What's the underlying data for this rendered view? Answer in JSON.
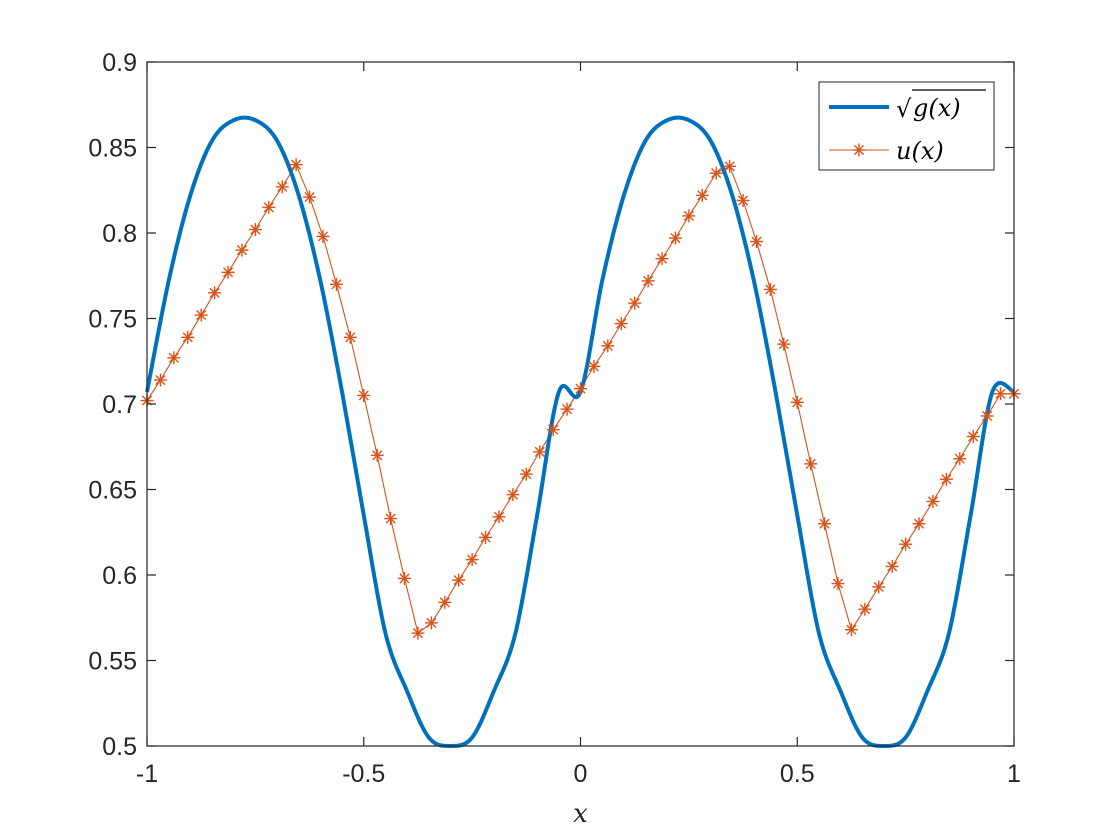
{
  "chart_data": {
    "type": "line",
    "xlabel": "x",
    "ylabel": "",
    "title": "",
    "xlim": [
      -1,
      1
    ],
    "ylim": [
      0.5,
      0.9
    ],
    "xticks": [
      -1,
      -0.5,
      0,
      0.5,
      1
    ],
    "xtick_labels": [
      "-1",
      "-0.5",
      "0",
      "0.5",
      "1"
    ],
    "yticks": [
      0.5,
      0.55,
      0.6,
      0.65,
      0.7,
      0.75,
      0.8,
      0.85,
      0.9
    ],
    "ytick_labels": [
      "0.5",
      "0.55",
      "0.6",
      "0.65",
      "0.7",
      "0.75",
      "0.8",
      "0.85",
      "0.9"
    ],
    "grid": false,
    "legend_position": "top-right",
    "series": [
      {
        "name": "√g(x)",
        "legend_label": {
          "radical": "√",
          "body": "g(x)"
        },
        "color": "#0072BD",
        "marker": "none",
        "x": [
          -1.0,
          -0.95,
          -0.9,
          -0.85,
          -0.8,
          -0.75,
          -0.7,
          -0.65,
          -0.6,
          -0.55,
          -0.5,
          -0.45,
          -0.4,
          -0.35,
          -0.3,
          -0.25,
          -0.2,
          -0.15,
          -0.1,
          -0.05,
          0.0,
          0.05,
          0.1,
          0.15,
          0.2,
          0.25,
          0.3,
          0.35,
          0.4,
          0.45,
          0.5,
          0.55,
          0.6,
          0.65,
          0.7,
          0.75,
          0.8,
          0.85,
          0.9,
          0.95,
          1.0
        ],
        "y": [
          0.707,
          0.772,
          0.822,
          0.854,
          0.866,
          0.866,
          0.854,
          0.822,
          0.772,
          0.707,
          0.635,
          0.566,
          0.532,
          0.505,
          0.5,
          0.505,
          0.532,
          0.566,
          0.635,
          0.707,
          0.707,
          0.772,
          0.822,
          0.854,
          0.866,
          0.866,
          0.854,
          0.822,
          0.772,
          0.707,
          0.635,
          0.566,
          0.532,
          0.505,
          0.5,
          0.505,
          0.532,
          0.566,
          0.635,
          0.707,
          0.707
        ]
      },
      {
        "name": "u(x)",
        "legend_label": {
          "radical": "",
          "body": "u(x)"
        },
        "color": "#D95319",
        "marker": "asterisk",
        "x": [
          -1.0,
          -0.969,
          -0.938,
          -0.906,
          -0.875,
          -0.844,
          -0.813,
          -0.781,
          -0.75,
          -0.719,
          -0.688,
          -0.656,
          -0.625,
          -0.594,
          -0.563,
          -0.531,
          -0.5,
          -0.469,
          -0.438,
          -0.406,
          -0.375,
          -0.344,
          -0.313,
          -0.281,
          -0.25,
          -0.219,
          -0.188,
          -0.156,
          -0.125,
          -0.094,
          -0.063,
          -0.031,
          0.0,
          0.031,
          0.063,
          0.094,
          0.125,
          0.156,
          0.188,
          0.219,
          0.25,
          0.281,
          0.313,
          0.344,
          0.375,
          0.406,
          0.438,
          0.469,
          0.5,
          0.531,
          0.563,
          0.594,
          0.625,
          0.656,
          0.688,
          0.719,
          0.75,
          0.781,
          0.813,
          0.844,
          0.875,
          0.906,
          0.938,
          0.969,
          1.0
        ],
        "y": [
          0.702,
          0.714,
          0.727,
          0.739,
          0.752,
          0.765,
          0.777,
          0.79,
          0.802,
          0.815,
          0.827,
          0.84,
          0.821,
          0.798,
          0.77,
          0.739,
          0.705,
          0.67,
          0.633,
          0.598,
          0.566,
          0.572,
          0.584,
          0.597,
          0.609,
          0.622,
          0.634,
          0.647,
          0.659,
          0.672,
          0.685,
          0.697,
          0.709,
          0.722,
          0.734,
          0.747,
          0.759,
          0.772,
          0.785,
          0.797,
          0.81,
          0.822,
          0.835,
          0.839,
          0.819,
          0.795,
          0.767,
          0.735,
          0.701,
          0.665,
          0.63,
          0.595,
          0.568,
          0.58,
          0.593,
          0.605,
          0.618,
          0.63,
          0.643,
          0.656,
          0.668,
          0.681,
          0.693,
          0.706,
          0.706
        ]
      }
    ]
  }
}
